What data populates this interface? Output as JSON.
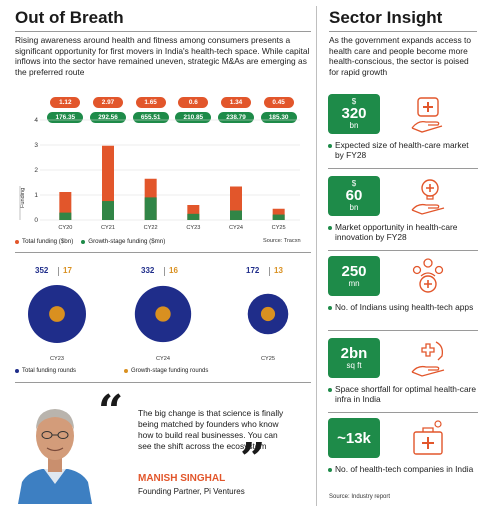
{
  "left": {
    "title": "Out of Breath",
    "intro": "Rising awareness around health and fitness among consumers presents a significant opportunity for first movers in India's health-tech space. While capital inflows into the sector have remained uneven, strategic M&As are emerging as the preferred route",
    "legend_total": "Total funding ($bn)",
    "legend_growth": "Growth-stage funding ($mn)",
    "source": "Source: Tracxn",
    "circle_legend_total": "Total funding rounds",
    "circle_legend_growth": "Growth-stage funding rounds"
  },
  "quote": {
    "text": "The big change is that science is finally being matched by founders who know how to build real businesses. You can see the shift across the ecosystem",
    "name": "MANISH SINGHAL",
    "role": "Founding Partner, Pi Ventures"
  },
  "right": {
    "title": "Sector Insight",
    "intro": "As the government expands access to health care and people become more health-conscious, the sector is poised for rapid growth",
    "stats": [
      {
        "pre": "$",
        "main": "320",
        "sub": "bn",
        "text": "Expected size of health-care market by FY28",
        "icon": "health-care-hand-icon"
      },
      {
        "pre": "$",
        "main": "60",
        "sub": "bn",
        "text": "Market opportunity in health-care innovation by FY28",
        "icon": "innovation-bulb-icon"
      },
      {
        "pre": "",
        "main": "250",
        "sub": "mn",
        "text": "No. of Indians using health-tech apps",
        "icon": "people-group-icon"
      },
      {
        "pre": "",
        "main": "2bn",
        "sub": "sq ft",
        "text": "Space shortfall for optimal health-care infra in India",
        "icon": "hands-cross-icon"
      },
      {
        "pre": "",
        "main": "~13k",
        "sub": "",
        "text": "No. of health-tech companies in India",
        "icon": "medical-kit-icon"
      }
    ],
    "source": "Source: Industry report"
  },
  "colors": {
    "orange": "#e2562b",
    "green": "#1e8b49",
    "navy": "#1f2d8a",
    "yellow": "#d99020"
  },
  "chart_data": [
    {
      "type": "bar",
      "categories": [
        "CY20",
        "CY21",
        "CY22",
        "CY23",
        "CY24",
        "CY25"
      ],
      "series": [
        {
          "name": "Total funding ($bn)",
          "values": [
            1.12,
            2.97,
            1.65,
            0.6,
            1.34,
            0.45
          ]
        },
        {
          "name": "Growth-stage funding ($mn)",
          "values": [
            176.35,
            292.56,
            655.51,
            210.85,
            238.79,
            185.3
          ]
        }
      ],
      "value_labels_total": [
        "1.12",
        "2.97",
        "1.65",
        "0.6",
        "1.34",
        "0.45"
      ],
      "value_labels_growth": [
        "176.35",
        "292.56",
        "655.51",
        "210.85",
        "238.79",
        "185.30"
      ],
      "ylabel": "Funding",
      "yticks": [
        0,
        1,
        2,
        3,
        4
      ],
      "ylim": [
        0,
        4
      ],
      "legend": "bottom-left"
    },
    {
      "type": "bubble",
      "categories": [
        "CY23",
        "CY24",
        "CY25"
      ],
      "series": [
        {
          "name": "Total funding rounds",
          "values": [
            352,
            332,
            172
          ]
        },
        {
          "name": "Growth-stage funding rounds",
          "values": [
            17,
            16,
            13
          ]
        }
      ],
      "legend": "bottom"
    }
  ]
}
